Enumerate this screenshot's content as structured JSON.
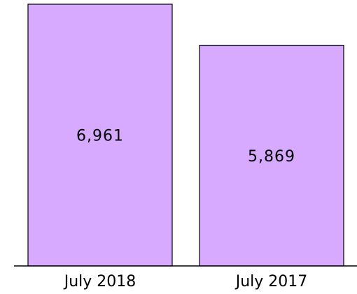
{
  "chart_data": {
    "type": "bar",
    "categories": [
      "July 2018",
      "July 2017"
    ],
    "values": [
      6961,
      5869
    ],
    "value_labels": [
      "6,961",
      "5,869"
    ],
    "title": "",
    "xlabel": "",
    "ylabel": "",
    "ylim": [
      0,
      7000
    ],
    "grid": false,
    "legend": "none",
    "bar_color": "#d7a9ff",
    "bar_edge_color": "#000000"
  }
}
